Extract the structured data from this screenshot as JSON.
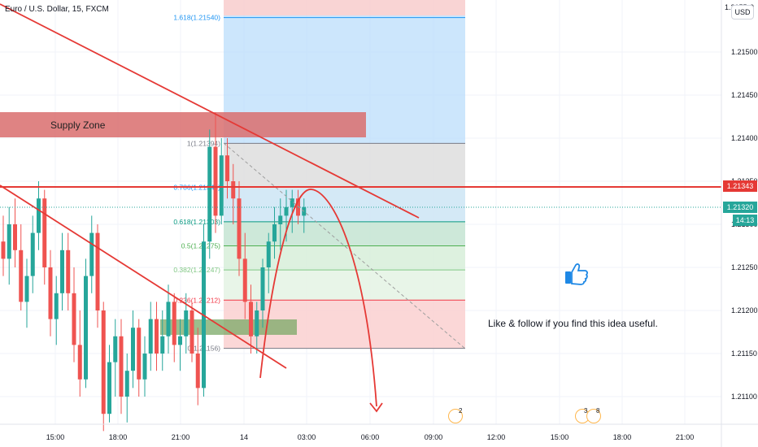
{
  "header": {
    "symbol_title": "Euro / U.S. Dollar, 15, FXCM",
    "currency": "USD"
  },
  "price_axis": {
    "ticks": [
      "1.21500",
      "1.21450",
      "1.21400",
      "1.21350",
      "1.21300",
      "1.21250",
      "1.21200",
      "1.21150",
      "1.21100"
    ],
    "top_partial": "1.2155",
    "top_partial_2": "0",
    "price_line_tag": "1.21343",
    "last_price_tag": "1.21320",
    "countdown": "14:13",
    "partial_under_tag": "1.21300"
  },
  "time_axis": {
    "ticks": [
      "15:00",
      "18:00",
      "21:00",
      "14",
      "03:00",
      "06:00",
      "09:00",
      "12:00",
      "15:00",
      "18:00",
      "21:00"
    ]
  },
  "annotations": {
    "supply_zone": "Supply Zone",
    "note": "Like & follow if you find this idea useful."
  },
  "events": [
    {
      "count": "2"
    },
    {
      "count": "3"
    },
    {
      "count": "8"
    }
  ],
  "colors": {
    "up": "#26a69a",
    "down": "#ef5350",
    "line": "#e53935",
    "fib_blue": "#2196f3"
  },
  "chart_data": {
    "type": "candlestick",
    "title": "Euro / U.S. Dollar, 15, FXCM",
    "ylim": [
      1.2107,
      1.2158
    ],
    "price_line": 1.21343,
    "last_price": 1.2132,
    "fibonacci": [
      {
        "label": "1.618(1.21540)",
        "level": 1.2154,
        "color": "#2196f3"
      },
      {
        "label": "1(1.21394)",
        "level": 1.21394,
        "color": "#787b86"
      },
      {
        "label": "0.786(1.21343)",
        "level": 1.21343,
        "color": "#2196f3"
      },
      {
        "label": "0.618(1.21303)",
        "level": 1.21303,
        "color": "#089981"
      },
      {
        "label": "0.5(1.21275)",
        "level": 1.21275,
        "color": "#4caf50"
      },
      {
        "label": "0.382(1.21247)",
        "level": 1.21247,
        "color": "#81c784"
      },
      {
        "label": "0.236(1.21212)",
        "level": 1.21212,
        "color": "#f23645"
      },
      {
        "label": "0(1.21156)",
        "level": 1.21156,
        "color": "#787b86"
      }
    ],
    "candles": [
      [
        1.2128,
        1.2131,
        1.2124,
        1.2126
      ],
      [
        1.2126,
        1.2132,
        1.2123,
        1.213
      ],
      [
        1.213,
        1.2133,
        1.2125,
        1.2127
      ],
      [
        1.2127,
        1.213,
        1.212,
        1.2121
      ],
      [
        1.2121,
        1.2126,
        1.2118,
        1.2124
      ],
      [
        1.2124,
        1.2131,
        1.2122,
        1.2129
      ],
      [
        1.2129,
        1.2135,
        1.2127,
        1.2133
      ],
      [
        1.2133,
        1.2134,
        1.2123,
        1.2125
      ],
      [
        1.2125,
        1.2127,
        1.2117,
        1.2119
      ],
      [
        1.2119,
        1.2124,
        1.2116,
        1.2122
      ],
      [
        1.2122,
        1.2129,
        1.212,
        1.2127
      ],
      [
        1.2127,
        1.2129,
        1.212,
        1.2122
      ],
      [
        1.2122,
        1.2125,
        1.2114,
        1.2116
      ],
      [
        1.2116,
        1.212,
        1.211,
        1.2112
      ],
      [
        1.2112,
        1.2126,
        1.2111,
        1.2124
      ],
      [
        1.2124,
        1.2131,
        1.2122,
        1.2129
      ],
      [
        1.2129,
        1.213,
        1.2118,
        1.212
      ],
      [
        1.212,
        1.2121,
        1.2106,
        1.2108
      ],
      [
        1.2108,
        1.2116,
        1.2107,
        1.2114
      ],
      [
        1.2114,
        1.2119,
        1.211,
        1.2117
      ],
      [
        1.2117,
        1.2119,
        1.2108,
        1.211
      ],
      [
        1.211,
        1.2115,
        1.2107,
        1.2113
      ],
      [
        1.2113,
        1.212,
        1.2111,
        1.2118
      ],
      [
        1.2118,
        1.2119,
        1.211,
        1.2112
      ],
      [
        1.2112,
        1.2117,
        1.211,
        1.2115
      ],
      [
        1.2115,
        1.2121,
        1.2113,
        1.2119
      ],
      [
        1.2119,
        1.2121,
        1.2113,
        1.2115
      ],
      [
        1.2115,
        1.212,
        1.2113,
        1.2117
      ],
      [
        1.2117,
        1.2123,
        1.2115,
        1.2121
      ],
      [
        1.2121,
        1.2122,
        1.2114,
        1.2116
      ],
      [
        1.2116,
        1.2119,
        1.2113,
        1.2117
      ],
      [
        1.2117,
        1.2122,
        1.2115,
        1.212
      ],
      [
        1.212,
        1.2121,
        1.2114,
        1.2115
      ],
      [
        1.2115,
        1.2118,
        1.2109,
        1.2111
      ],
      [
        1.2111,
        1.213,
        1.211,
        1.2128
      ],
      [
        1.2128,
        1.2141,
        1.2126,
        1.2139
      ],
      [
        1.2139,
        1.2143,
        1.2129,
        1.2131
      ],
      [
        1.2131,
        1.214,
        1.213,
        1.2138
      ],
      [
        1.2138,
        1.214,
        1.2133,
        1.2135
      ],
      [
        1.2135,
        1.2137,
        1.213,
        1.2133
      ],
      [
        1.2133,
        1.2135,
        1.2124,
        1.2126
      ],
      [
        1.2126,
        1.2129,
        1.2119,
        1.2121
      ],
      [
        1.2121,
        1.2123,
        1.2115,
        1.2117
      ],
      [
        1.2117,
        1.2121,
        1.2115,
        1.212
      ],
      [
        1.212,
        1.2126,
        1.2118,
        1.2125
      ],
      [
        1.2125,
        1.2129,
        1.2122,
        1.2128
      ],
      [
        1.2128,
        1.2132,
        1.2126,
        1.213
      ],
      [
        1.213,
        1.2133,
        1.2127,
        1.2131
      ],
      [
        1.2131,
        1.2134,
        1.2128,
        1.2132
      ],
      [
        1.2132,
        1.2134,
        1.2129,
        1.2133
      ],
      [
        1.2133,
        1.2134,
        1.213,
        1.2131
      ],
      [
        1.2131,
        1.2133,
        1.2129,
        1.2132
      ]
    ]
  }
}
